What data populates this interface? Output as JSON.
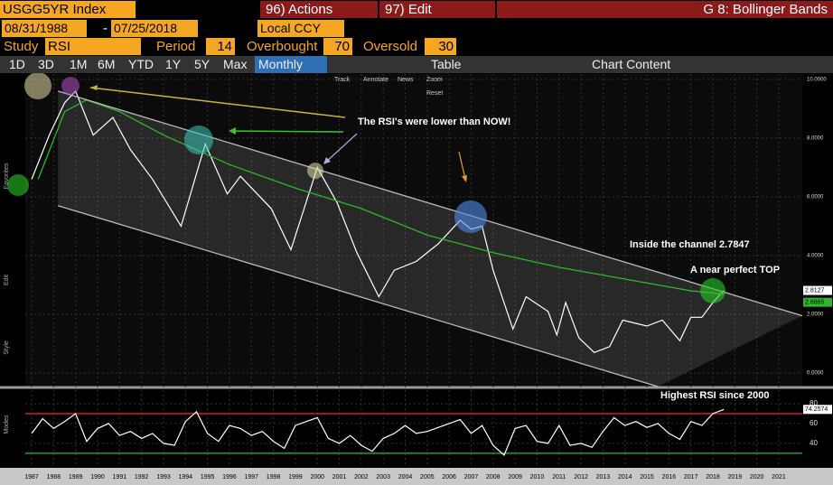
{
  "toolbar": {
    "ticker": "USGG5YR Index",
    "actions": "96) Actions",
    "edit": "97) Edit",
    "function": "G 8: Bollinger Bands",
    "start_date": "08/31/1988",
    "date_separator": "-",
    "end_date": "07/25/2018",
    "currency": "Local CCY",
    "study_label": "Study",
    "study": "RSI",
    "period_label": "Period",
    "period": 14,
    "overbought_label": "Overbought",
    "overbought": 70,
    "oversold_label": "Oversold",
    "oversold": 30,
    "ranges": [
      "1D",
      "3D",
      "1M",
      "6M",
      "YTD",
      "1Y",
      "5Y",
      "Max"
    ],
    "frequency": "Monthly",
    "table": "Table",
    "chart_content": "Chart Content"
  },
  "chart_tools": [
    "Track",
    "Annotate",
    "News",
    "Zoom",
    "Reset"
  ],
  "side_labels": [
    "Favorites",
    "Edit",
    "Style",
    "Modes"
  ],
  "chart_data": [
    {
      "type": "line",
      "xlim": [
        1986.71,
        2022.07
      ],
      "ylim": [
        -0.46,
        10.18
      ],
      "xticks": [
        1987,
        1988,
        1989,
        1990,
        1991,
        1992,
        1993,
        1994,
        1995,
        1996,
        1997,
        1998,
        1999,
        2000,
        2001,
        2002,
        2003,
        2004,
        2005,
        2006,
        2007,
        2008,
        2009,
        2010,
        2011,
        2012,
        2013,
        2014,
        2015,
        2016,
        2017,
        2018,
        2019,
        2020,
        2021
      ],
      "yticks": [
        {
          "value": 0,
          "label": "0.0000"
        },
        {
          "value": 2,
          "label": "2.0000"
        },
        {
          "value": 4,
          "label": "4.0000"
        },
        {
          "value": 6,
          "label": "6.0000"
        },
        {
          "value": 8,
          "label": "8.0000"
        },
        {
          "value": 10,
          "label": "10.0000"
        }
      ],
      "grid": true,
      "series": [
        {
          "color": "#ffffff",
          "x": [
            1987.0,
            1987.8,
            1988.5,
            1989.0,
            1989.8,
            1990.7,
            1991.5,
            1992.5,
            1993.8,
            1994.9,
            1995.9,
            1996.5,
            1997.9,
            1998.8,
            2000.0,
            2000.9,
            2001.8,
            2002.8,
            2003.5,
            2004.5,
            2005.5,
            2006.5,
            2007.0,
            2007.5,
            2008.0,
            2008.9,
            2009.5,
            2010.5,
            2010.9,
            2011.3,
            2011.9,
            2012.6,
            2013.3,
            2013.9,
            2015.0,
            2015.7,
            2016.5,
            2017.0,
            2017.5,
            2018.0,
            2018.5
          ],
          "values": [
            6.6,
            8.1,
            9.2,
            9.6,
            8.1,
            8.7,
            7.6,
            6.6,
            5.0,
            7.8,
            6.1,
            6.7,
            5.6,
            4.2,
            7.0,
            5.8,
            4.1,
            2.6,
            3.5,
            3.8,
            4.4,
            5.2,
            4.9,
            5.0,
            3.5,
            1.5,
            2.6,
            2.1,
            1.3,
            2.4,
            1.2,
            0.7,
            0.9,
            1.8,
            1.6,
            1.8,
            1.1,
            1.9,
            1.9,
            2.4,
            2.8127
          ]
        },
        {
          "color": "#2fb52f",
          "x": [
            1987.3,
            1988.5,
            1989.5,
            1991.0,
            1993.0,
            1996.0,
            1999.0,
            2002.0,
            2005.0,
            2008.0,
            2011.0,
            2014.0,
            2017.0,
            2018.5
          ],
          "values": [
            6.6,
            8.9,
            9.3,
            8.9,
            8.1,
            7.1,
            6.3,
            5.6,
            4.7,
            4.1,
            3.6,
            3.2,
            2.8,
            2.6865
          ]
        },
        {
          "color": "#bbbbbb",
          "x": [
            1988.2,
            2022.07
          ],
          "values": [
            9.6,
            1.95
          ]
        },
        {
          "color": "#bbbbbb",
          "x": [
            1988.2,
            2015.5
          ],
          "values": [
            5.7,
            -0.46
          ]
        }
      ],
      "price_tags": [
        {
          "value": 2.8127,
          "label": "2.8127",
          "color": "#ffffff"
        },
        {
          "value": 2.6865,
          "label": "2.6865",
          "color": "#2fb52f"
        }
      ],
      "annotations": [
        "The RSI's were lower than NOW!",
        "Inside the channel 2.7847",
        "A near perfect TOP"
      ]
    },
    {
      "type": "line",
      "xlim": [
        1986.71,
        2022.07
      ],
      "ylim": [
        18,
        95.5
      ],
      "yticks": [
        40,
        60,
        80
      ],
      "series": [
        {
          "color": "#ffffff",
          "x": [
            1987,
            1987.5,
            1988,
            1988.5,
            1989,
            1989.5,
            1990,
            1990.5,
            1991,
            1991.5,
            1992,
            1992.5,
            1993,
            1993.5,
            1994,
            1994.5,
            1995,
            1995.5,
            1996,
            1996.5,
            1997,
            1997.5,
            1998,
            1998.5,
            1999,
            1999.5,
            2000,
            2000.5,
            2001,
            2001.5,
            2002,
            2002.5,
            2003,
            2003.5,
            2004,
            2004.5,
            2005,
            2005.5,
            2006,
            2006.5,
            2007,
            2007.5,
            2008,
            2008.5,
            2009,
            2009.5,
            2010,
            2010.5,
            2011,
            2011.5,
            2012,
            2012.5,
            2013,
            2013.5,
            2014,
            2014.5,
            2015,
            2015.5,
            2016,
            2016.5,
            2017,
            2017.5,
            2018,
            2018.5
          ],
          "values": [
            50,
            65,
            55,
            62,
            70,
            42,
            55,
            60,
            48,
            52,
            45,
            50,
            40,
            38,
            62,
            72,
            50,
            42,
            58,
            55,
            48,
            52,
            42,
            35,
            58,
            62,
            66,
            45,
            40,
            48,
            38,
            32,
            45,
            50,
            58,
            50,
            52,
            56,
            60,
            64,
            50,
            58,
            38,
            28,
            55,
            58,
            42,
            40,
            58,
            38,
            40,
            36,
            52,
            66,
            58,
            62,
            56,
            60,
            50,
            44,
            62,
            58,
            70,
            74.2574
          ]
        }
      ],
      "tags": [
        {
          "value": 74.2574,
          "label": "74.2574",
          "color": "#ffffff"
        }
      ],
      "annotations": [
        "Highest RSI since 2000"
      ]
    }
  ]
}
